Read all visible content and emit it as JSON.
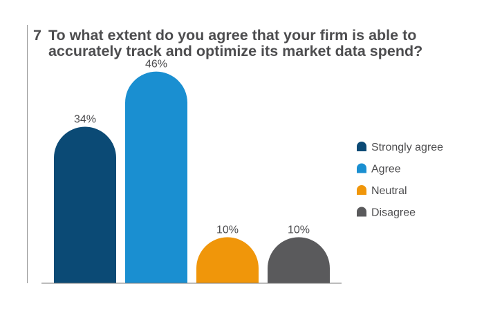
{
  "question": {
    "number": "7",
    "text": "To what extent do you agree that your firm is able to accurately track and optimize its market data spend?"
  },
  "chart_data": {
    "type": "bar",
    "title": "To what extent do you agree that your firm is able to accurately track and optimize its market data spend?",
    "categories": [
      "Strongly agree",
      "Agree",
      "Neutral",
      "Disagree"
    ],
    "values": [
      34,
      46,
      10,
      10
    ],
    "value_labels": [
      "34%",
      "46%",
      "10%",
      "10%"
    ],
    "colors": [
      "#0b4a75",
      "#1a8fd1",
      "#f0960a",
      "#5a5a5c"
    ],
    "unit": "%",
    "ylim": [
      0,
      50
    ],
    "grid": false,
    "legend": {
      "placement": "right",
      "entries": [
        "Strongly agree",
        "Agree",
        "Neutral",
        "Disagree"
      ]
    }
  }
}
